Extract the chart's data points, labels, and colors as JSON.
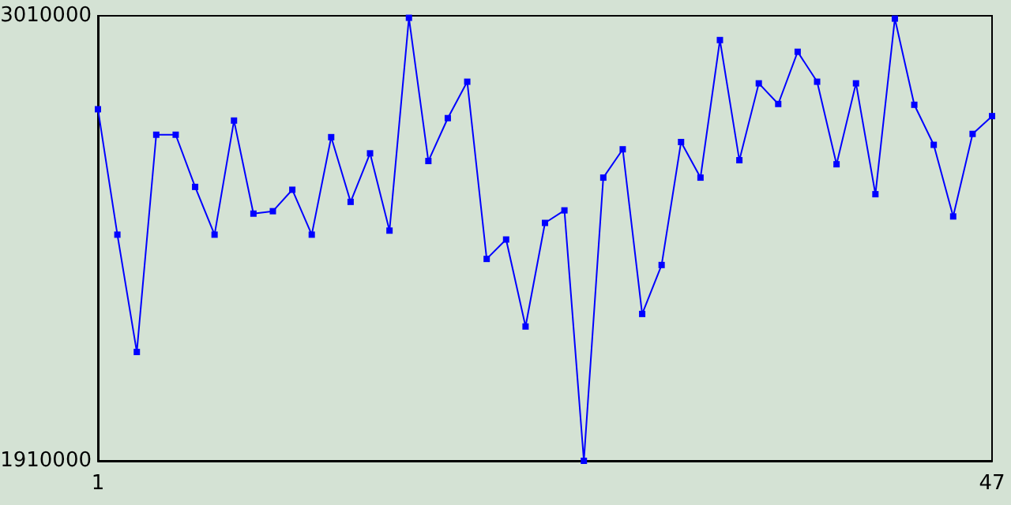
{
  "chart_data": {
    "type": "line",
    "x": [
      1,
      2,
      3,
      4,
      5,
      6,
      7,
      8,
      9,
      10,
      11,
      12,
      13,
      14,
      15,
      16,
      17,
      18,
      19,
      20,
      21,
      22,
      23,
      24,
      25,
      26,
      27,
      28,
      29,
      30,
      31,
      32,
      33,
      34,
      35,
      36,
      37,
      38,
      39,
      40,
      41,
      42,
      43,
      44,
      45,
      46,
      47
    ],
    "series": [
      {
        "color": "#0000ff",
        "values": [
          2779000,
          2469000,
          2179000,
          2716000,
          2716000,
          2587000,
          2469000,
          2751000,
          2521000,
          2527000,
          2580000,
          2469000,
          2710000,
          2550000,
          2670000,
          2479000,
          3005000,
          2651000,
          2757000,
          2847000,
          2409000,
          2457000,
          2242000,
          2498000,
          2529000,
          1910000,
          2610000,
          2680000,
          2273000,
          2394000,
          2698000,
          2610000,
          2950000,
          2653000,
          2843000,
          2792000,
          2921000,
          2847000,
          2643000,
          2843000,
          2569000,
          3003000,
          2790000,
          2691000,
          2514000,
          2718000,
          2762000
        ]
      }
    ],
    "xlim": [
      1,
      47
    ],
    "xticks": [
      1,
      47
    ],
    "ylim": [
      1910000,
      3010000
    ],
    "yticks": [
      1910000,
      3010000
    ],
    "grid": false,
    "marker": "square",
    "line_style": "solid"
  }
}
